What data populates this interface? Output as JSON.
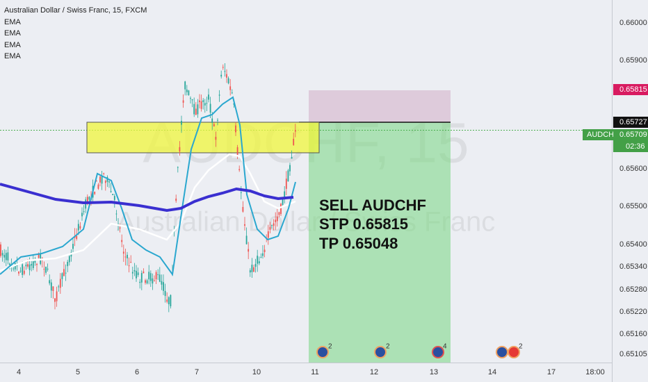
{
  "header": {
    "title": "Australian Dollar / Swiss Franc, 15, FXCM",
    "indicators": [
      "EMA",
      "EMA",
      "EMA",
      "EMA"
    ]
  },
  "watermark": {
    "symbol": "AUDCHF, 15",
    "name": "Australian Dollar / Swiss Franc"
  },
  "price_axis": {
    "labels": [
      "0.66000",
      "0.65900",
      "0.65600",
      "0.65500",
      "0.65400",
      "0.65340",
      "0.65280",
      "0.65220",
      "0.65160",
      "0.65105"
    ]
  },
  "price_badges": {
    "stop": "0.65815",
    "entry": "0.65727",
    "symbol": "AUDCHF",
    "last": "0.65709",
    "countdown": "02:36"
  },
  "time_axis": {
    "labels": [
      "4",
      "5",
      "6",
      "7",
      "10",
      "11",
      "12",
      "13",
      "14",
      "17",
      "18:00"
    ]
  },
  "annotation": {
    "lines": [
      "SELL AUDCHF",
      "STP 0.65815",
      "TP 0.65048"
    ]
  },
  "events": [
    {
      "count": "2"
    },
    {
      "count": "2"
    },
    {
      "count": "4"
    },
    {
      "count": "2"
    }
  ]
}
